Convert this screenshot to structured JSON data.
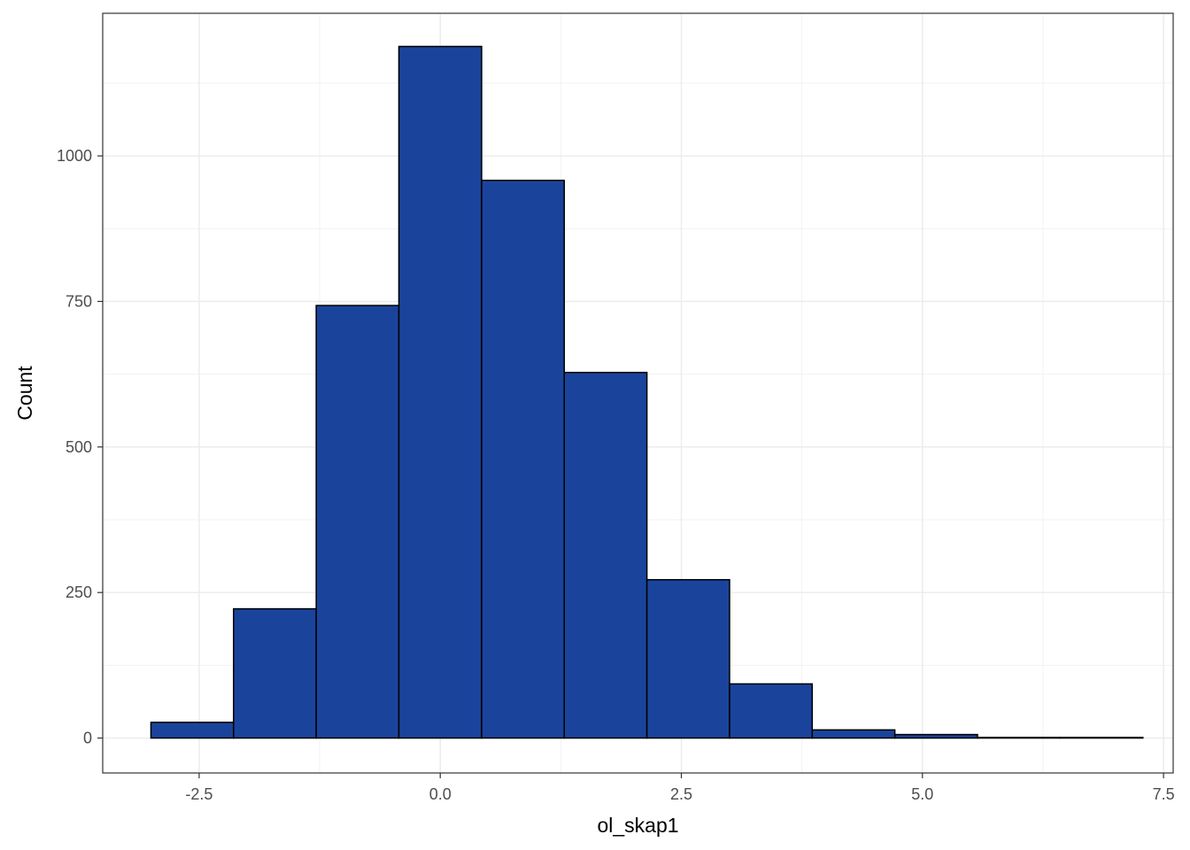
{
  "chart_data": {
    "type": "bar",
    "subtype": "histogram",
    "title": "",
    "xlabel": "ol_skap1",
    "ylabel": "Count",
    "bins": [
      {
        "x0": -3.0,
        "x1": -2.143,
        "count": 27
      },
      {
        "x0": -2.143,
        "x1": -1.286,
        "count": 222
      },
      {
        "x0": -1.286,
        "x1": -0.429,
        "count": 743
      },
      {
        "x0": -0.429,
        "x1": 0.429,
        "count": 1188
      },
      {
        "x0": 0.429,
        "x1": 1.286,
        "count": 958
      },
      {
        "x0": 1.286,
        "x1": 2.143,
        "count": 628
      },
      {
        "x0": 2.143,
        "x1": 3.0,
        "count": 272
      },
      {
        "x0": 3.0,
        "x1": 3.857,
        "count": 93
      },
      {
        "x0": 3.857,
        "x1": 4.714,
        "count": 14
      },
      {
        "x0": 4.714,
        "x1": 5.571,
        "count": 6
      },
      {
        "x0": 5.571,
        "x1": 6.429,
        "count": 1
      },
      {
        "x0": 6.429,
        "x1": 7.286,
        "count": 1
      }
    ],
    "xlim": [
      -3.5,
      7.6
    ],
    "ylim": [
      -60,
      1245
    ],
    "x_ticks": [
      -2.5,
      0.0,
      2.5,
      5.0,
      7.5
    ],
    "x_tick_labels": [
      "-2.5",
      "0.0",
      "2.5",
      "5.0",
      "7.5"
    ],
    "y_ticks": [
      0,
      250,
      500,
      750,
      1000
    ],
    "y_tick_labels": [
      "0",
      "250",
      "500",
      "750",
      "1000"
    ],
    "grid": true,
    "colors": {
      "bar_fill": "#1a449c",
      "bar_stroke": "#000000",
      "grid_major": "#ebebeb",
      "grid_minor": "#f2f2f2",
      "panel_border": "#333333"
    }
  }
}
